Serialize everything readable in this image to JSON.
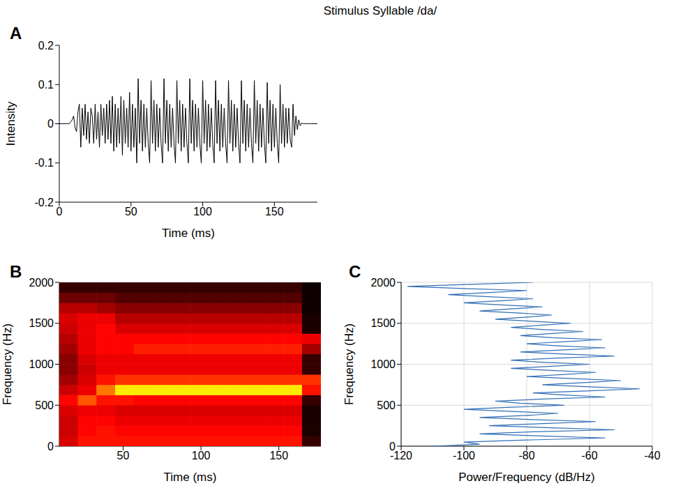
{
  "title": "Stimulus Syllable /da/",
  "chart_data": [
    {
      "panel": "A",
      "type": "line",
      "xlabel": "Time (ms)",
      "ylabel": "Intensity",
      "color": "#000000",
      "grid": false,
      "xlim": [
        0,
        180
      ],
      "xticks": [
        0,
        50,
        100,
        150
      ],
      "ylim": [
        -0.2,
        0.2
      ],
      "yticks": [
        -0.2,
        -0.1,
        0,
        0.1,
        0.2
      ],
      "x": [
        0,
        1,
        2,
        3,
        4,
        5,
        6,
        7,
        8,
        9,
        10,
        11,
        12,
        13,
        14,
        15,
        16,
        17,
        18,
        19,
        20,
        21,
        22,
        23,
        24,
        25,
        26,
        27,
        28,
        29,
        30,
        31,
        32,
        33,
        34,
        35,
        36,
        37,
        38,
        39,
        40,
        41,
        42,
        43,
        44,
        45,
        46,
        47,
        48,
        49,
        50,
        51,
        52,
        53,
        54,
        55,
        56,
        57,
        58,
        59,
        60,
        61,
        62,
        63,
        64,
        65,
        66,
        67,
        68,
        69,
        70,
        71,
        72,
        73,
        74,
        75,
        76,
        77,
        78,
        79,
        80,
        81,
        82,
        83,
        84,
        85,
        86,
        87,
        88,
        89,
        90,
        91,
        92,
        93,
        94,
        95,
        96,
        97,
        98,
        99,
        100,
        101,
        102,
        103,
        104,
        105,
        106,
        107,
        108,
        109,
        110,
        111,
        112,
        113,
        114,
        115,
        116,
        117,
        118,
        119,
        120,
        121,
        122,
        123,
        124,
        125,
        126,
        127,
        128,
        129,
        130,
        131,
        132,
        133,
        134,
        135,
        136,
        137,
        138,
        139,
        140,
        141,
        142,
        143,
        144,
        145,
        146,
        147,
        148,
        149,
        150,
        151,
        152,
        153,
        154,
        155,
        156,
        157,
        158,
        159,
        160,
        161,
        162,
        163,
        164,
        165,
        166,
        167,
        168,
        169,
        170,
        171,
        172,
        173,
        174,
        175,
        176,
        177,
        178,
        179,
        180
      ],
      "values": [
        0,
        0,
        0,
        0,
        0,
        0,
        0,
        0,
        0.005,
        0.01,
        0.02,
        -0.01,
        -0.02,
        0.03,
        0.05,
        -0.06,
        0.04,
        -0.03,
        0.05,
        -0.04,
        0.03,
        -0.05,
        0.04,
        0.02,
        -0.05,
        0.05,
        -0.04,
        0.03,
        -0.06,
        0.05,
        -0.03,
        0.04,
        -0.05,
        0.05,
        -0.04,
        0.06,
        -0.05,
        0.07,
        -0.07,
        0.05,
        -0.06,
        0.04,
        -0.05,
        0.07,
        -0.08,
        0.06,
        -0.05,
        0.04,
        -0.06,
        0.08,
        -0.07,
        0.05,
        -0.06,
        0.04,
        -0.1,
        0.115,
        -0.05,
        0.06,
        -0.07,
        0.05,
        -0.06,
        0.04,
        -0.05,
        -0.1,
        0.11,
        -0.05,
        0.06,
        -0.07,
        0.05,
        -0.06,
        0.04,
        -0.05,
        -0.1,
        0.115,
        -0.05,
        0.06,
        -0.07,
        0.05,
        -0.06,
        0.04,
        -0.05,
        -0.1,
        0.11,
        -0.05,
        0.06,
        -0.07,
        0.05,
        -0.06,
        0.04,
        -0.05,
        -0.1,
        0.115,
        -0.05,
        0.06,
        -0.07,
        0.05,
        -0.06,
        0.04,
        -0.05,
        -0.1,
        0.11,
        -0.05,
        0.06,
        -0.07,
        0.05,
        -0.06,
        0.04,
        -0.05,
        -0.1,
        0.11,
        -0.05,
        0.06,
        -0.07,
        0.05,
        -0.06,
        0.04,
        -0.05,
        -0.1,
        0.11,
        -0.05,
        0.06,
        -0.07,
        0.05,
        -0.06,
        0.04,
        -0.05,
        -0.1,
        0.11,
        -0.05,
        0.06,
        -0.07,
        0.05,
        -0.06,
        0.04,
        -0.05,
        -0.1,
        0.11,
        -0.05,
        0.06,
        -0.07,
        0.05,
        -0.06,
        0.04,
        -0.05,
        -0.1,
        0.105,
        -0.05,
        0.06,
        -0.07,
        0.05,
        -0.06,
        0.04,
        -0.05,
        -0.1,
        0.1,
        -0.05,
        0.05,
        -0.06,
        0.04,
        -0.05,
        0.04,
        -0.04,
        -0.06,
        0.05,
        -0.03,
        0.02,
        -0.015,
        0.01,
        -0.005,
        0.002,
        0,
        0,
        0,
        0,
        0,
        0,
        0,
        0,
        0,
        0,
        0
      ]
    },
    {
      "panel": "B",
      "type": "heatmap",
      "xlabel": "Time (ms)",
      "ylabel": "Frequency (Hz)",
      "grid": false,
      "xlim": [
        9,
        177
      ],
      "xticks": [
        50,
        100,
        150
      ],
      "ylim": [
        0,
        2000
      ],
      "yticks": [
        0,
        500,
        1000,
        1500,
        2000
      ],
      "zlim": [
        0,
        1
      ],
      "x": [
        15,
        27,
        39,
        51,
        63,
        75,
        87,
        99,
        111,
        123,
        135,
        147,
        159,
        171
      ],
      "y": [
        62.5,
        187.5,
        312.5,
        437.5,
        562.5,
        687.5,
        812.5,
        937.5,
        1062.5,
        1187.5,
        1312.5,
        1437.5,
        1562.5,
        1687.5,
        1812.5,
        1937.5
      ],
      "z": [
        [
          0.32,
          0.4,
          0.4,
          0.4,
          0.4,
          0.4,
          0.4,
          0.4,
          0.4,
          0.4,
          0.4,
          0.4,
          0.4,
          0.08
        ],
        [
          0.3,
          0.38,
          0.4,
          0.38,
          0.38,
          0.38,
          0.38,
          0.38,
          0.38,
          0.38,
          0.38,
          0.38,
          0.38,
          0.04
        ],
        [
          0.3,
          0.38,
          0.38,
          0.35,
          0.35,
          0.35,
          0.35,
          0.35,
          0.35,
          0.35,
          0.35,
          0.35,
          0.35,
          0.04
        ],
        [
          0.32,
          0.35,
          0.35,
          0.32,
          0.32,
          0.32,
          0.32,
          0.32,
          0.32,
          0.32,
          0.32,
          0.32,
          0.32,
          0.04
        ],
        [
          0.38,
          0.5,
          0.4,
          0.4,
          0.38,
          0.38,
          0.38,
          0.38,
          0.38,
          0.38,
          0.38,
          0.38,
          0.38,
          0.08
        ],
        [
          0.3,
          0.35,
          0.55,
          0.72,
          0.72,
          0.72,
          0.72,
          0.72,
          0.72,
          0.72,
          0.72,
          0.72,
          0.72,
          0.4
        ],
        [
          0.24,
          0.32,
          0.4,
          0.45,
          0.45,
          0.45,
          0.45,
          0.45,
          0.45,
          0.45,
          0.45,
          0.45,
          0.45,
          0.45
        ],
        [
          0.2,
          0.3,
          0.35,
          0.35,
          0.35,
          0.35,
          0.35,
          0.35,
          0.35,
          0.35,
          0.35,
          0.35,
          0.35,
          0.08
        ],
        [
          0.2,
          0.32,
          0.35,
          0.35,
          0.35,
          0.35,
          0.35,
          0.35,
          0.35,
          0.35,
          0.35,
          0.35,
          0.35,
          0.08
        ],
        [
          0.24,
          0.35,
          0.38,
          0.38,
          0.42,
          0.42,
          0.42,
          0.42,
          0.42,
          0.42,
          0.42,
          0.42,
          0.42,
          0.24
        ],
        [
          0.27,
          0.35,
          0.38,
          0.38,
          0.38,
          0.38,
          0.38,
          0.38,
          0.38,
          0.38,
          0.38,
          0.38,
          0.38,
          0.35
        ],
        [
          0.3,
          0.35,
          0.38,
          0.32,
          0.32,
          0.32,
          0.32,
          0.32,
          0.32,
          0.32,
          0.32,
          0.32,
          0.32,
          0.04
        ],
        [
          0.32,
          0.35,
          0.35,
          0.27,
          0.27,
          0.27,
          0.27,
          0.27,
          0.27,
          0.27,
          0.27,
          0.27,
          0.27,
          0.04
        ],
        [
          0.27,
          0.27,
          0.24,
          0.2,
          0.2,
          0.2,
          0.2,
          0.2,
          0.2,
          0.2,
          0.2,
          0.2,
          0.2,
          0.02
        ],
        [
          0.16,
          0.16,
          0.16,
          0.12,
          0.12,
          0.12,
          0.12,
          0.12,
          0.12,
          0.12,
          0.12,
          0.12,
          0.12,
          0.02
        ],
        [
          0.08,
          0.08,
          0.08,
          0.08,
          0.08,
          0.08,
          0.08,
          0.08,
          0.08,
          0.08,
          0.08,
          0.08,
          0.08,
          0.02
        ]
      ]
    },
    {
      "panel": "C",
      "type": "line",
      "xlabel": "Power/Frequency (dB/Hz)",
      "ylabel": "Frequency (Hz)",
      "grid": true,
      "color": "#2f6db5",
      "marker": "none",
      "line_style": "solid",
      "xlim": [
        -120,
        -40
      ],
      "xticks": [
        -120,
        -100,
        -80,
        -60,
        -40
      ],
      "ylim": [
        0,
        2000
      ],
      "yticks": [
        0,
        500,
        1000,
        1500,
        2000
      ],
      "y": [
        0,
        25,
        50,
        75,
        100,
        125,
        150,
        175,
        200,
        225,
        250,
        275,
        300,
        325,
        350,
        375,
        400,
        425,
        450,
        475,
        500,
        525,
        550,
        575,
        600,
        625,
        650,
        675,
        700,
        725,
        750,
        775,
        800,
        825,
        850,
        875,
        900,
        925,
        950,
        975,
        1000,
        1025,
        1050,
        1075,
        1100,
        1125,
        1150,
        1175,
        1200,
        1225,
        1250,
        1275,
        1300,
        1325,
        1350,
        1375,
        1400,
        1425,
        1450,
        1475,
        1500,
        1525,
        1550,
        1575,
        1600,
        1625,
        1650,
        1675,
        1700,
        1725,
        1750,
        1775,
        1800,
        1825,
        1850,
        1875,
        1900,
        1925,
        1950,
        1975,
        2000
      ],
      "x": [
        -110,
        -95,
        -100,
        -80,
        -55,
        -75,
        -95,
        -78,
        -52,
        -72,
        -92,
        -75,
        -58,
        -78,
        -95,
        -80,
        -70,
        -85,
        -100,
        -85,
        -68,
        -82,
        -90,
        -75,
        -55,
        -68,
        -78,
        -60,
        -44,
        -60,
        -75,
        -62,
        -50,
        -65,
        -80,
        -68,
        -58,
        -72,
        -85,
        -72,
        -60,
        -75,
        -85,
        -70,
        -52,
        -68,
        -82,
        -68,
        -55,
        -70,
        -80,
        -68,
        -56,
        -72,
        -82,
        -72,
        -62,
        -75,
        -85,
        -76,
        -66,
        -78,
        -90,
        -80,
        -72,
        -82,
        -95,
        -85,
        -75,
        -88,
        -100,
        -88,
        -78,
        -92,
        -105,
        -92,
        -80,
        -100,
        -118,
        -98,
        -78
      ]
    }
  ]
}
